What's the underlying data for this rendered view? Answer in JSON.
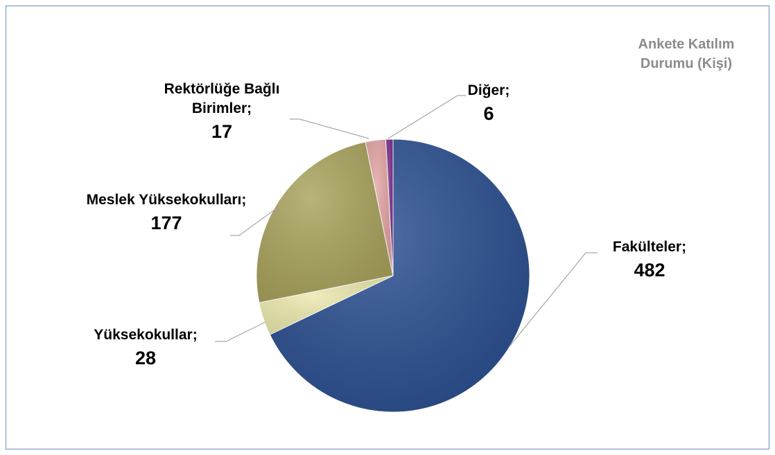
{
  "chart_data": {
    "type": "pie",
    "title": "Ankete Katılım Durumu (Kişi)",
    "categories": [
      "Fakülteler;",
      "Yüksekokullar;",
      "Meslek Yüksekokulları;",
      "Rektörlüğe Bağlı Birimler;",
      "Diğer;"
    ],
    "values": [
      482,
      28,
      177,
      17,
      6
    ],
    "colors": [
      "#2b4f91",
      "#ebe9ad",
      "#a9a35c",
      "#e3a3a3",
      "#7b2c8c"
    ]
  }
}
